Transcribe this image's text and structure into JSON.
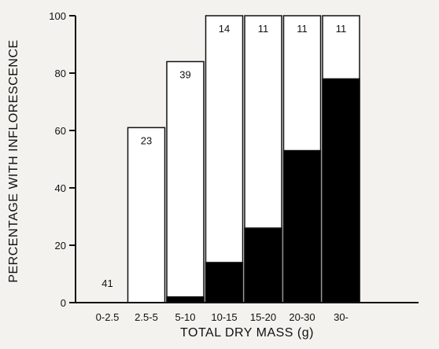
{
  "chart_data": {
    "type": "bar",
    "title": "",
    "xlabel": "TOTAL DRY MASS (g)",
    "ylabel": "PERCENTAGE WITH INFLORESCENCE",
    "ylim": [
      0,
      100
    ],
    "yticks": [
      0,
      20,
      40,
      60,
      80,
      100
    ],
    "grid": false,
    "legend": "none",
    "categories": [
      "0-2.5",
      "2.5-5",
      "5-10",
      "10-15",
      "15-20",
      "20-30",
      "30-"
    ],
    "sample_sizes": [
      "41",
      "23",
      "39",
      "14",
      "11",
      "11",
      "11"
    ],
    "series": [
      {
        "values": [
          0,
          61,
          84,
          100,
          100,
          100,
          100
        ],
        "color": "#ffffff"
      },
      {
        "values": [
          0,
          0,
          2,
          14,
          26,
          53,
          78
        ],
        "color": "#000000"
      }
    ]
  }
}
